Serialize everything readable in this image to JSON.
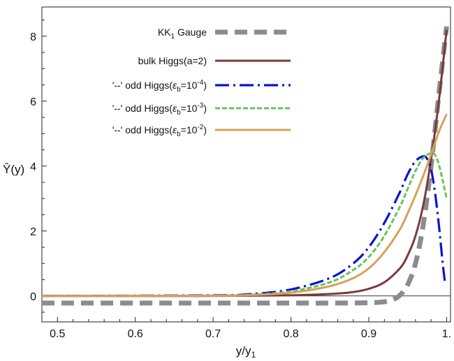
{
  "chart_data": {
    "type": "line",
    "title": "",
    "xlabel": "y/y",
    "xlabel_sub": "1",
    "ylabel": "Ŷ(y)",
    "xlim": [
      0.48,
      1.005
    ],
    "ylim": [
      -0.8,
      8.9
    ],
    "xticks": [
      0.5,
      0.6,
      0.7,
      0.8,
      0.9,
      1.0
    ],
    "xtick_labels": [
      "0.5",
      "0.6",
      "0.7",
      "0.8",
      "0.9",
      "1."
    ],
    "yticks": [
      0,
      2,
      4,
      6,
      8
    ],
    "ytick_labels": [
      "0",
      "2",
      "4",
      "6",
      "8"
    ],
    "zero_line": true,
    "grid": false,
    "legend_position": "top-center",
    "series": [
      {
        "label_parts": [
          "KK",
          {
            "sub": "1"
          },
          " Gauge"
        ],
        "color": "#8c8c8c",
        "style": "thick-dashed",
        "x": [
          0.48,
          0.6,
          0.7,
          0.8,
          0.85,
          0.9,
          0.92,
          0.93,
          0.94,
          0.95,
          0.96,
          0.97,
          0.98,
          0.99,
          1.0
        ],
        "y": [
          -0.22,
          -0.22,
          -0.22,
          -0.22,
          -0.22,
          -0.21,
          -0.18,
          -0.12,
          0.02,
          0.35,
          1.0,
          2.2,
          4.0,
          6.2,
          8.3
        ]
      },
      {
        "label_parts": [
          "bulk Higgs(a=2)"
        ],
        "color": "#7a3b3b",
        "style": "solid",
        "x": [
          0.48,
          0.7,
          0.8,
          0.85,
          0.88,
          0.9,
          0.92,
          0.94,
          0.95,
          0.96,
          0.97,
          0.98,
          0.99,
          1.0
        ],
        "y": [
          0.0,
          0.0,
          0.02,
          0.06,
          0.12,
          0.22,
          0.42,
          0.85,
          1.25,
          1.85,
          2.8,
          4.2,
          6.0,
          8.2
        ]
      },
      {
        "label_parts": [
          "'--' odd Higgs(",
          {
            "it": "ε"
          },
          {
            "sub": "b"
          },
          "=10",
          {
            "sup": "-4"
          },
          ")"
        ],
        "color": "#0a14d0",
        "style": "dash-dot",
        "x": [
          0.48,
          0.7,
          0.75,
          0.8,
          0.85,
          0.88,
          0.9,
          0.92,
          0.94,
          0.95,
          0.96,
          0.97,
          0.975,
          0.98,
          0.985,
          0.99,
          0.995,
          0.998
        ],
        "y": [
          0.0,
          0.02,
          0.06,
          0.2,
          0.55,
          1.0,
          1.5,
          2.25,
          3.2,
          3.75,
          4.15,
          4.3,
          4.22,
          3.9,
          3.2,
          2.2,
          1.0,
          0.4
        ]
      },
      {
        "label_parts": [
          "'--' odd Higgs(",
          {
            "it": "ε"
          },
          {
            "sub": "b"
          },
          "=10",
          {
            "sup": "-3"
          },
          ")"
        ],
        "color": "#66c35a",
        "style": "short-dash",
        "x": [
          0.48,
          0.7,
          0.75,
          0.8,
          0.85,
          0.88,
          0.9,
          0.92,
          0.94,
          0.95,
          0.96,
          0.97,
          0.98,
          0.985,
          0.99,
          0.995,
          1.0
        ],
        "y": [
          0.0,
          0.01,
          0.04,
          0.14,
          0.42,
          0.8,
          1.2,
          1.85,
          2.75,
          3.3,
          3.85,
          4.25,
          4.4,
          4.35,
          4.05,
          3.55,
          3.0
        ]
      },
      {
        "label_parts": [
          "'--' odd Higgs(",
          {
            "it": "ε"
          },
          {
            "sub": "b"
          },
          "=10",
          {
            "sup": "-2"
          },
          ")"
        ],
        "color": "#d4a25a",
        "style": "solid",
        "x": [
          0.48,
          0.7,
          0.75,
          0.8,
          0.85,
          0.88,
          0.9,
          0.92,
          0.94,
          0.95,
          0.96,
          0.97,
          0.98,
          0.99,
          1.0
        ],
        "y": [
          0.0,
          0.01,
          0.03,
          0.1,
          0.3,
          0.55,
          0.85,
          1.35,
          2.05,
          2.55,
          3.1,
          3.7,
          4.35,
          5.05,
          5.6
        ]
      }
    ]
  }
}
